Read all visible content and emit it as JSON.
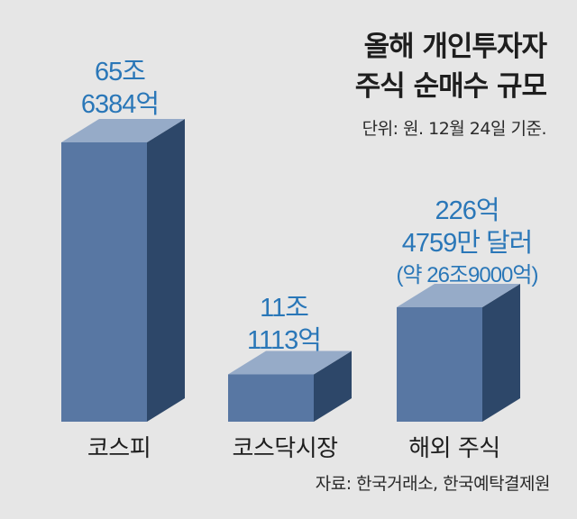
{
  "title_line1": "올해 개인투자자",
  "title_line2": "주식 순매수 규모",
  "subtitle": "단위: 원. 12월 24일 기준.",
  "source": "자료: 한국거래소, 한국예탁결제원",
  "colors": {
    "front": "#5877a3",
    "side": "#2d4769",
    "top": "#96abc8",
    "value_text": "#2a77b8",
    "background": "#e6e6e6"
  },
  "chart_data": {
    "type": "bar",
    "categories": [
      "코스피",
      "코스닥시장",
      "해외 주식"
    ],
    "values": [
      656384,
      111113,
      269000
    ],
    "value_unit": "억원",
    "data_labels": [
      [
        "65조",
        "6384억"
      ],
      [
        "11조",
        "1113억"
      ],
      [
        "226억",
        "4759만 달러",
        "(약 26조9000억)"
      ]
    ],
    "ylim": [
      0,
      656384
    ],
    "grid": false,
    "legend": "none"
  }
}
